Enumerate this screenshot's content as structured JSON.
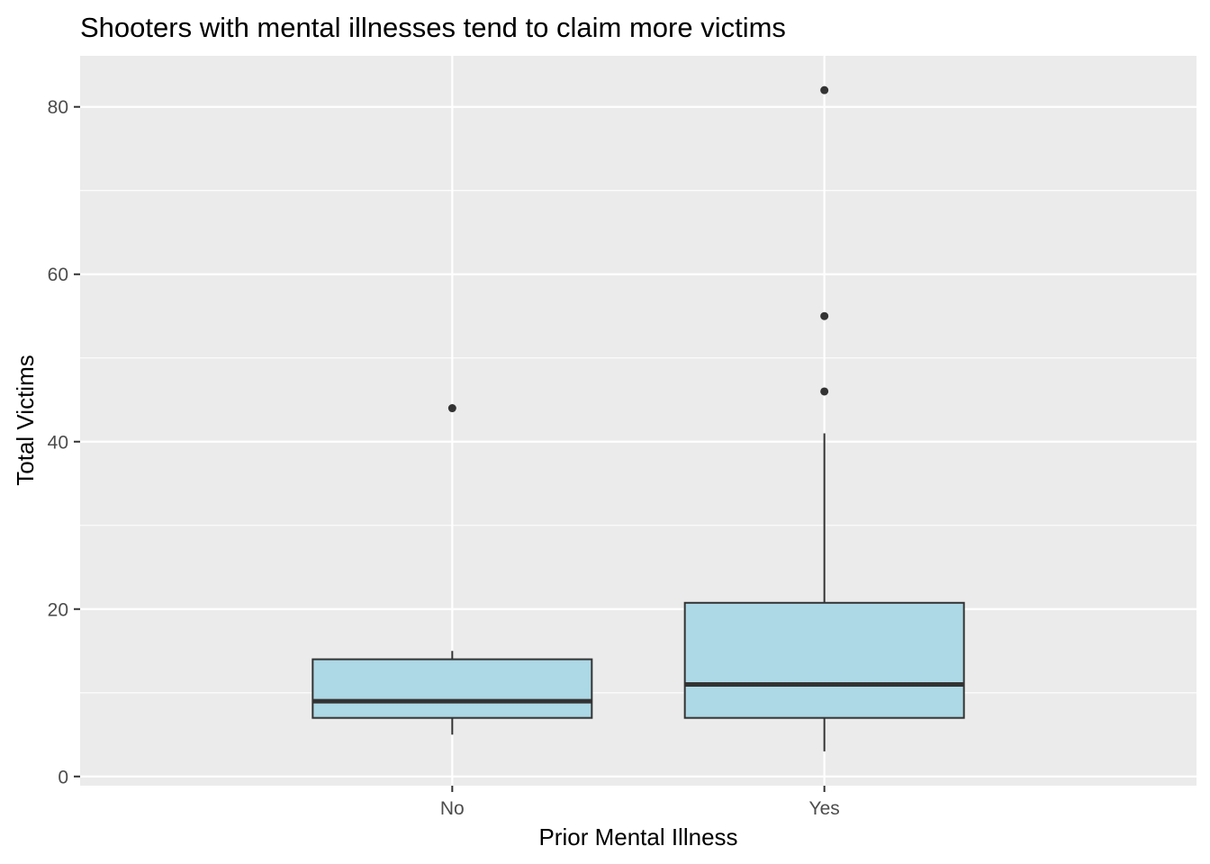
{
  "chart_data": {
    "type": "boxplot",
    "title": "Shooters with mental illnesses tend to claim more victims",
    "xlabel": "Prior Mental Illness",
    "ylabel": "Total Victims",
    "categories": [
      "No",
      "Yes"
    ],
    "boxes": [
      {
        "category": "No",
        "whisker_low": 5,
        "q1": 7,
        "median": 9,
        "q3": 14,
        "whisker_high": 15,
        "outliers": [
          44
        ]
      },
      {
        "category": "Yes",
        "whisker_low": 3,
        "q1": 7,
        "median": 11,
        "q3": 20.75,
        "whisker_high": 41,
        "outliers": [
          46,
          55,
          82
        ]
      }
    ],
    "ylim": [
      -1.1,
      86.1
    ],
    "yticks": [
      0,
      20,
      40,
      60,
      80
    ],
    "ytick_labels": [
      "0",
      "20",
      "40",
      "60",
      "80"
    ],
    "grid": true,
    "colors": {
      "panel_background": "#ebebeb",
      "grid": "#ffffff",
      "box_fill": "#add8e6",
      "box_line": "#333333",
      "outlier": "#333333"
    }
  }
}
